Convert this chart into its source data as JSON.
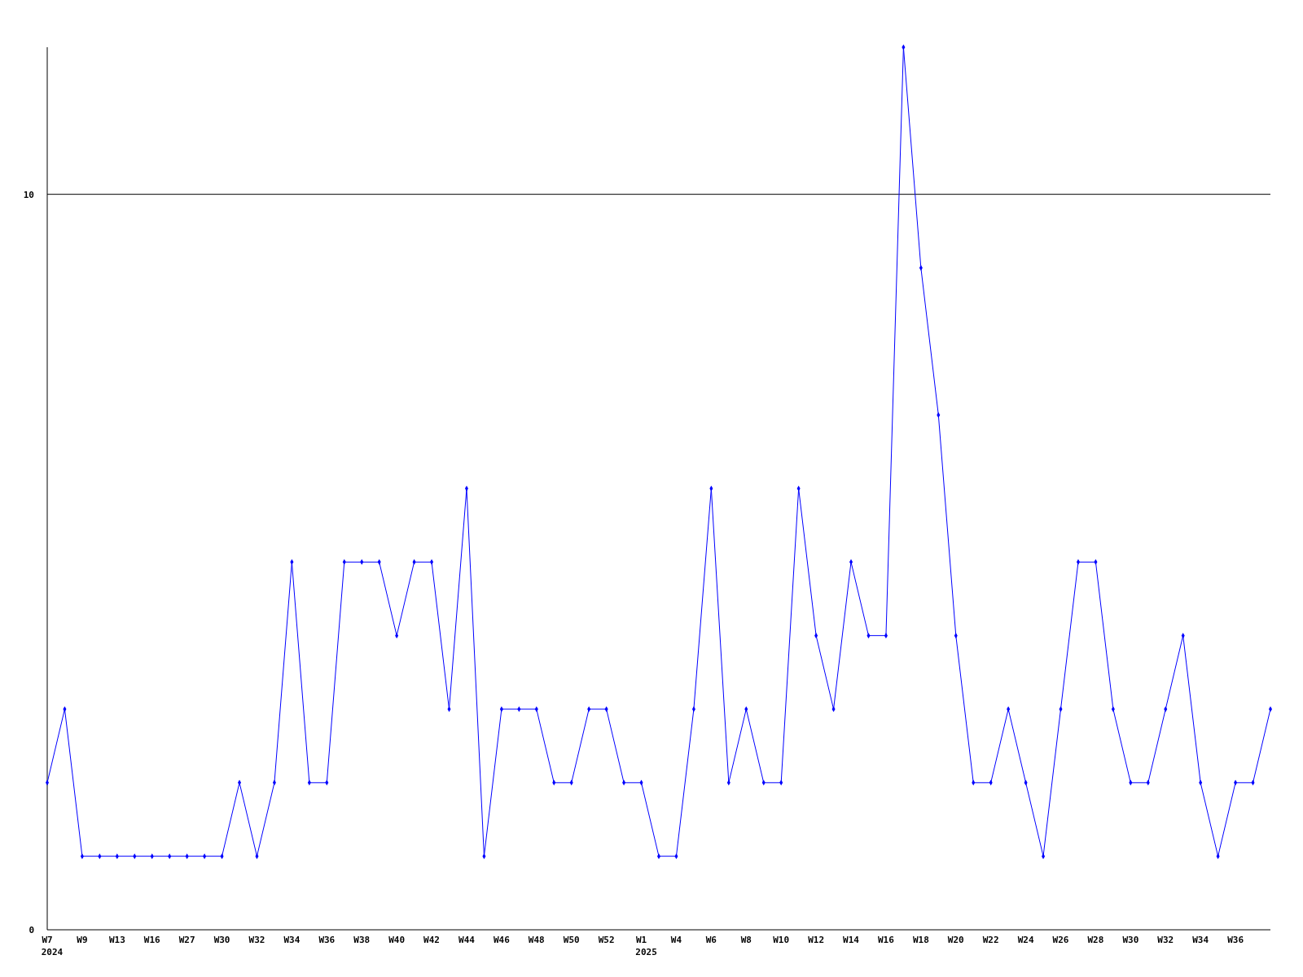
{
  "chart_data": {
    "type": "line",
    "categories": [
      "W7",
      null,
      "W9",
      null,
      "W13",
      null,
      "W16",
      null,
      "W27",
      null,
      "W30",
      null,
      "W32",
      null,
      "W34",
      null,
      "W36",
      null,
      "W38",
      null,
      "W40",
      null,
      "W42",
      null,
      "W44",
      null,
      "W46",
      null,
      "W48",
      null,
      "W50",
      null,
      "W52",
      null,
      "W1",
      null,
      "W4",
      null,
      "W6",
      null,
      "W8",
      null,
      "W10",
      null,
      "W12",
      null,
      "W14",
      null,
      "W16",
      null,
      "W18",
      null,
      "W20",
      null,
      "W22",
      null,
      "W24",
      null,
      "W26",
      null,
      "W28",
      null,
      "W30",
      null,
      "W32",
      null,
      "W34",
      null,
      "W36",
      null,
      null
    ],
    "series": [
      {
        "color": "#0000ff",
        "values": [
          2,
          3,
          1,
          1,
          1,
          1,
          1,
          1,
          1,
          1,
          1,
          2,
          1,
          2,
          5,
          2,
          2,
          5,
          5,
          5,
          4,
          5,
          5,
          3,
          6,
          1,
          3,
          3,
          3,
          2,
          2,
          3,
          3,
          2,
          2,
          1,
          1,
          3,
          6,
          2,
          3,
          2,
          2,
          6,
          4,
          3,
          5,
          4,
          4,
          12,
          9,
          7,
          4,
          2,
          2,
          3,
          2,
          1,
          3,
          5,
          5,
          3,
          2,
          2,
          3,
          4,
          2,
          1,
          2,
          2,
          3
        ]
      }
    ],
    "ylim": [
      0,
      12
    ],
    "yticks": [
      0,
      10
    ],
    "grid": "y",
    "marker": "diamond",
    "annotations": [
      "2024",
      "2025"
    ]
  }
}
